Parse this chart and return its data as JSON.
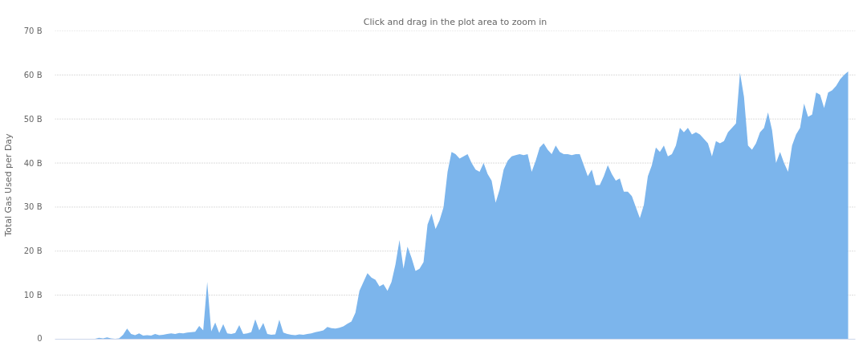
{
  "chart_data": {
    "type": "area",
    "subtitle": "Click and drag in the plot area to zoom in",
    "ylabel": "Total Gas Used per Day",
    "color": "#7cb5ec",
    "grid": "y",
    "tick_labels": "y",
    "ylim": [
      0,
      70
    ],
    "yticks": [
      0,
      {
        "value": 10,
        "label": "10 B"
      },
      {
        "value": 20,
        "label": "20 B"
      },
      {
        "value": 30,
        "label": "30 B"
      },
      {
        "value": 40,
        "label": "40 B"
      },
      {
        "value": 50,
        "label": "50 B"
      },
      {
        "value": 60,
        "label": "60 B"
      },
      {
        "value": 70,
        "label": "70 B"
      }
    ],
    "categories": [
      null,
      null,
      null,
      null,
      null,
      null,
      null,
      null,
      null,
      null,
      null,
      null,
      null,
      null,
      null,
      null,
      null,
      null,
      null,
      null,
      null,
      null,
      null,
      null,
      null,
      null,
      null,
      null,
      null,
      null,
      null,
      null,
      null,
      null,
      null,
      null,
      null,
      null,
      null,
      null,
      null,
      null,
      null,
      null,
      null,
      null,
      null,
      null,
      null,
      null,
      null,
      null,
      null,
      null,
      null,
      null,
      null,
      null,
      null,
      null,
      null,
      null,
      null,
      null,
      null,
      null,
      null,
      null,
      null,
      null,
      null,
      null,
      null,
      null,
      null,
      null,
      null,
      null,
      null,
      null,
      null,
      null,
      null,
      null,
      null,
      null,
      null,
      null,
      null,
      null,
      null,
      null,
      null,
      null,
      null,
      null,
      null,
      null,
      null,
      null,
      null,
      null,
      null,
      null,
      null,
      null,
      null,
      null,
      null,
      null,
      null,
      null,
      null,
      null,
      null,
      null,
      null,
      null,
      null,
      null,
      null,
      null,
      null,
      null,
      null,
      null,
      null,
      null,
      null,
      null,
      null,
      null,
      null,
      null,
      null,
      null,
      null,
      null,
      null,
      null,
      null,
      null,
      null,
      null,
      null,
      null,
      null,
      null,
      null,
      null,
      null,
      null,
      null,
      null,
      null,
      null,
      null,
      null,
      null,
      null,
      null,
      null,
      null,
      null,
      null,
      null,
      null,
      null,
      null,
      null,
      null,
      null,
      null,
      null,
      null,
      null,
      null,
      null,
      null,
      null,
      null,
      null,
      null,
      null,
      null,
      null,
      null,
      null,
      null,
      null,
      null,
      null,
      null,
      null,
      null,
      null,
      null,
      null,
      null
    ],
    "values": [
      0,
      0,
      0,
      0,
      0,
      0,
      0,
      0,
      0,
      0.1,
      0.1,
      0.3,
      0.2,
      0.4,
      0.2,
      0.1,
      0.2,
      1.0,
      2.4,
      1.2,
      0.9,
      1.3,
      0.8,
      0.9,
      0.8,
      1.2,
      0.9,
      1.0,
      1.2,
      1.3,
      1.2,
      1.4,
      1.3,
      1.5,
      1.6,
      1.7,
      3.0,
      2.0,
      13.0,
      1.8,
      3.8,
      1.4,
      3.4,
      1.3,
      1.2,
      1.4,
      3.2,
      1.2,
      1.3,
      1.6,
      4.5,
      2.0,
      3.7,
      1.2,
      1.0,
      1.1,
      4.4,
      1.5,
      1.2,
      1.0,
      0.9,
      1.1,
      1.0,
      1.2,
      1.3,
      1.6,
      1.8,
      2.0,
      2.8,
      2.5,
      2.4,
      2.6,
      2.9,
      3.5,
      4.0,
      6.0,
      11.0,
      13.0,
      15.0,
      14.0,
      13.5,
      12.0,
      12.5,
      11.0,
      13.0,
      17.0,
      22.5,
      16.0,
      21.0,
      18.5,
      15.5,
      16.0,
      17.5,
      26.0,
      28.5,
      25.0,
      27.0,
      30.0,
      38.0,
      42.5,
      42.0,
      41.0,
      41.5,
      42.0,
      40.0,
      38.5,
      38.0,
      40.0,
      37.5,
      36.0,
      31.0,
      34.0,
      38.5,
      40.5,
      41.5,
      41.8,
      42.0,
      41.8,
      42.0,
      38.0,
      40.5,
      43.5,
      44.5,
      43.0,
      42.0,
      44.0,
      42.5,
      42.0,
      42.0,
      41.8,
      42.0,
      42.0,
      39.5,
      37.0,
      38.5,
      35.0,
      35.0,
      37.0,
      39.5,
      37.5,
      36.0,
      36.5,
      33.5,
      33.5,
      32.5,
      30.0,
      27.5,
      30.5,
      37.0,
      39.5,
      43.5,
      42.5,
      44.0,
      41.5,
      42.0,
      44.0,
      48.0,
      47.0,
      48.0,
      46.5,
      47.0,
      46.5,
      45.5,
      44.5,
      41.5,
      45.0,
      44.5,
      45.0,
      47.0,
      48.0,
      49.0,
      60.5,
      55.0,
      44.0,
      43.0,
      44.5,
      47.0,
      48.0,
      51.5,
      47.5,
      40.0,
      42.5,
      40.0,
      38.0,
      44.0,
      46.5,
      48.0,
      53.5,
      50.5,
      51.0,
      56.0,
      55.5,
      52.5,
      56.0,
      56.5,
      57.5,
      59.0,
      60.0,
      60.8
    ]
  }
}
